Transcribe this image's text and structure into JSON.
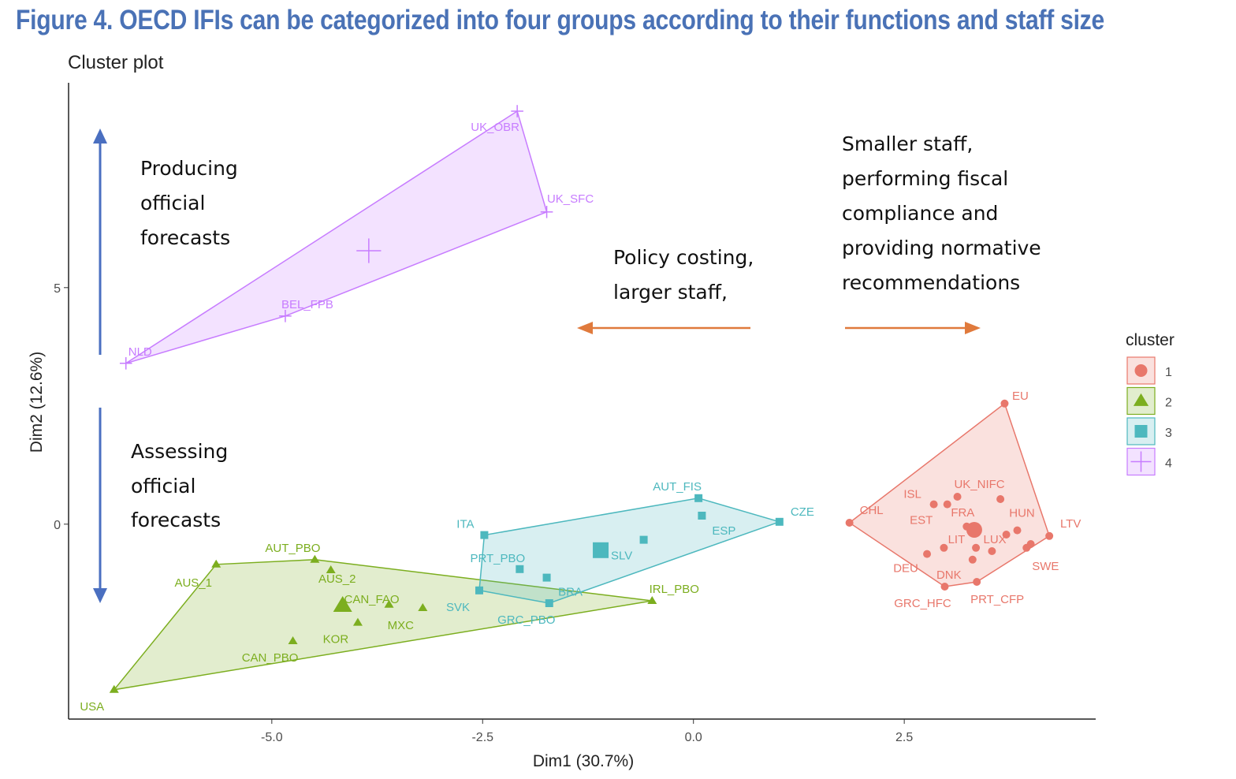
{
  "figure_title": "Figure 4. OECD IFIs can be categorized into four groups according to their functions and staff size",
  "chart_data": {
    "type": "scatter",
    "title": "Cluster plot",
    "xlabel": "Dim1 (30.7%)",
    "ylabel": "Dim2 (12.6%)",
    "xlim": [
      -7.41,
      4.77
    ],
    "ylim": [
      -4.12,
      9.33
    ],
    "xticks": [
      "-5.0",
      "-2.5",
      "0.0",
      "2.5"
    ],
    "xtick_values": [
      -5.0,
      -2.5,
      0.0,
      2.5
    ],
    "yticks": [
      "0",
      "5"
    ],
    "ytick_values": [
      0,
      5
    ],
    "grid": false,
    "legend": {
      "title": "cluster",
      "placement": "right",
      "entries": [
        "1",
        "2",
        "3",
        "4"
      ]
    },
    "series": [
      {
        "name": "1",
        "color": "#e8776b",
        "shape": "circle",
        "centroid": [
          3.33,
          -0.12
        ],
        "points": [
          {
            "label": "CHL",
            "x": 1.85,
            "y": 0.03
          },
          {
            "label": "EU",
            "x": 3.69,
            "y": 2.55
          },
          {
            "label": "ISL",
            "x": 2.85,
            "y": 0.42
          },
          {
            "label": "EST",
            "x": 3.01,
            "y": 0.42
          },
          {
            "label": "UK_NIFC",
            "x": 3.13,
            "y": 0.58
          },
          {
            "label": "",
            "x": 3.64,
            "y": 0.53
          },
          {
            "label": "FRA",
            "x": 3.24,
            "y": -0.05
          },
          {
            "label": "",
            "x": 3.36,
            "y": -0.13
          },
          {
            "label": "",
            "x": 3.71,
            "y": -0.22
          },
          {
            "label": "HUN",
            "x": 3.84,
            "y": -0.13
          },
          {
            "label": "LTV",
            "x": 4.22,
            "y": -0.25
          },
          {
            "label": "SWE",
            "x": 3.95,
            "y": -0.5
          },
          {
            "label": "",
            "x": 4.0,
            "y": -0.42
          },
          {
            "label": "LIT",
            "x": 2.97,
            "y": -0.5
          },
          {
            "label": "LUX",
            "x": 3.35,
            "y": -0.5
          },
          {
            "label": "",
            "x": 3.54,
            "y": -0.57
          },
          {
            "label": "DEU",
            "x": 2.77,
            "y": -0.63
          },
          {
            "label": "DNK",
            "x": 3.31,
            "y": -0.75
          },
          {
            "label": "GRC_HFC",
            "x": 2.98,
            "y": -1.32
          },
          {
            "label": "PRT_CFP",
            "x": 3.36,
            "y": -1.22
          }
        ]
      },
      {
        "name": "2",
        "color": "#7cae1f",
        "shape": "triangle",
        "centroid": [
          -4.16,
          -1.72
        ],
        "points": [
          {
            "label": "USA",
            "x": -6.87,
            "y": -3.5
          },
          {
            "label": "AUS_1",
            "x": -5.66,
            "y": -0.85
          },
          {
            "label": "AUT_PBO",
            "x": -4.49,
            "y": -0.75
          },
          {
            "label": "AUS_2",
            "x": -4.3,
            "y": -0.97
          },
          {
            "label": "CAN_FAO",
            "x": -3.61,
            "y": -1.7
          },
          {
            "label": "KOR",
            "x": -3.98,
            "y": -2.08
          },
          {
            "label": "MXC",
            "x": -3.21,
            "y": -1.77
          },
          {
            "label": "CAN_PBO",
            "x": -4.75,
            "y": -2.47
          },
          {
            "label": "IRL_PBO",
            "x": -0.49,
            "y": -1.62
          }
        ]
      },
      {
        "name": "3",
        "color": "#4db8be",
        "shape": "square",
        "centroid": [
          -1.1,
          -0.55
        ],
        "points": [
          {
            "label": "ITA",
            "x": -2.48,
            "y": -0.23
          },
          {
            "label": "PRT_PBO",
            "x": -2.06,
            "y": -0.95
          },
          {
            "label": "BRA",
            "x": -1.74,
            "y": -1.13
          },
          {
            "label": "SVK",
            "x": -2.54,
            "y": -1.4
          },
          {
            "label": "GRC_PBO",
            "x": -1.71,
            "y": -1.67
          },
          {
            "label": "SLV",
            "x": -0.59,
            "y": -0.33
          },
          {
            "label": "AUT_FIS",
            "x": 0.06,
            "y": 0.55
          },
          {
            "label": "ESP",
            "x": 0.1,
            "y": 0.18
          },
          {
            "label": "CZE",
            "x": 1.02,
            "y": 0.05
          }
        ]
      },
      {
        "name": "4",
        "color": "#c77cff",
        "shape": "plus",
        "centroid": [
          -3.85,
          5.78
        ],
        "points": [
          {
            "label": "NLD",
            "x": -6.73,
            "y": 3.4
          },
          {
            "label": "BEL_FPB",
            "x": -4.84,
            "y": 4.4
          },
          {
            "label": "UK_OBR",
            "x": -2.09,
            "y": 8.73
          },
          {
            "label": "UK_SFC",
            "x": -1.74,
            "y": 6.6
          }
        ]
      }
    ]
  },
  "annotations": {
    "producing": [
      "Producing",
      "official",
      "forecasts"
    ],
    "assessing": [
      "Assessing",
      "official",
      "forecasts"
    ],
    "policy": [
      "Policy costing,",
      "larger staff,"
    ],
    "smaller": [
      "Smaller staff,",
      "performing fiscal",
      "compliance and",
      "providing normative",
      "recommendations"
    ],
    "arrow_vertical_color": "#4a6fc0",
    "arrow_horizontal_color": "#e07a3c"
  }
}
